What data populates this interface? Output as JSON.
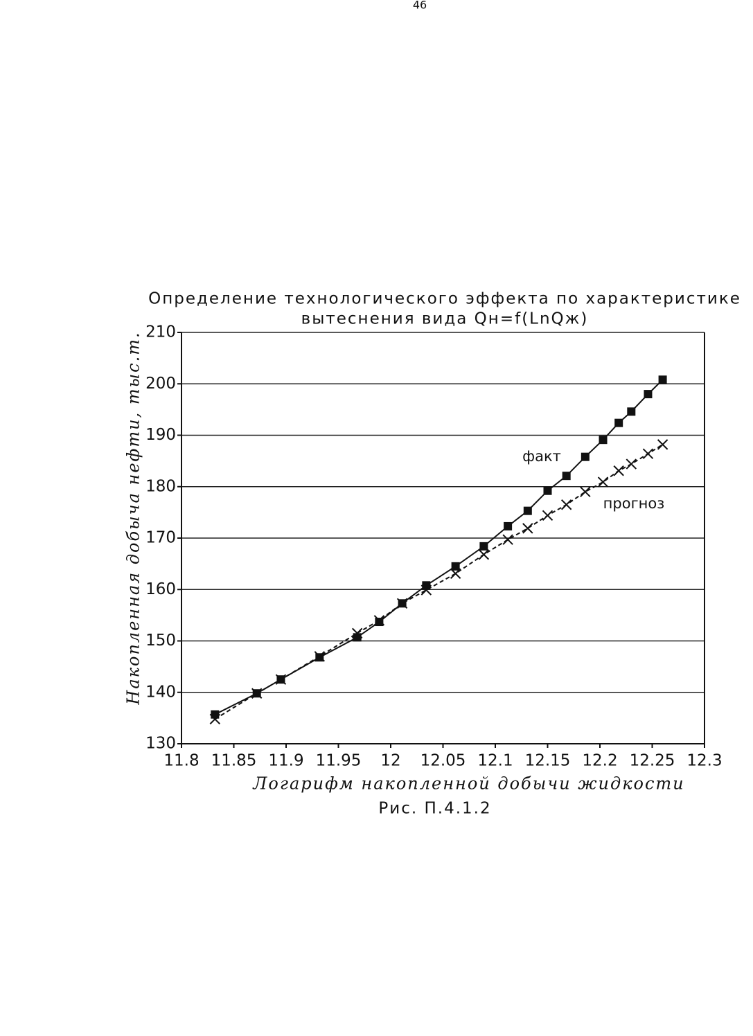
{
  "page_number": "46",
  "caption": "Рис. П.4.1.2",
  "chart_data": {
    "type": "line",
    "title": [
      "Определение технологического эффекта по характеристике",
      "вытеснения вида Qн=f(LnQж)"
    ],
    "x_label": "Логарифм накопленной добычи жидкости",
    "y_label": "Накопленная добыча нефти, тыс.т.",
    "x": [
      11.832,
      11.872,
      11.895,
      11.932,
      11.968,
      11.989,
      12.011,
      12.034,
      12.062,
      12.089,
      12.112,
      12.131,
      12.15,
      12.168,
      12.186,
      12.203,
      12.218,
      12.23,
      12.246,
      12.26
    ],
    "series": [
      {
        "name": "факт",
        "color": "#111111",
        "marker": "square",
        "dash": "solid",
        "values": [
          135.7,
          139.8,
          142.5,
          146.8,
          150.7,
          153.7,
          157.3,
          160.8,
          164.5,
          168.4,
          172.3,
          175.3,
          179.2,
          182.1,
          185.8,
          189.1,
          192.4,
          194.6,
          198.0,
          200.8
        ]
      },
      {
        "name": "прогноз",
        "color": "#111111",
        "marker": "cross",
        "dash": "dashed",
        "values": [
          134.8,
          139.8,
          142.5,
          147.0,
          151.5,
          154.0,
          157.3,
          159.9,
          163.1,
          166.8,
          169.7,
          171.9,
          174.4,
          176.5,
          179.0,
          180.9,
          183.1,
          184.4,
          186.4,
          188.2
        ]
      }
    ],
    "xlim": [
      11.8,
      12.3
    ],
    "xticks": [
      11.8,
      11.85,
      11.9,
      11.95,
      12,
      12.05,
      12.1,
      12.15,
      12.2,
      12.25,
      12.3
    ],
    "ylim": [
      130,
      210
    ],
    "yticks": [
      130,
      140,
      150,
      160,
      170,
      180,
      190,
      200,
      210
    ],
    "grid": true
  }
}
